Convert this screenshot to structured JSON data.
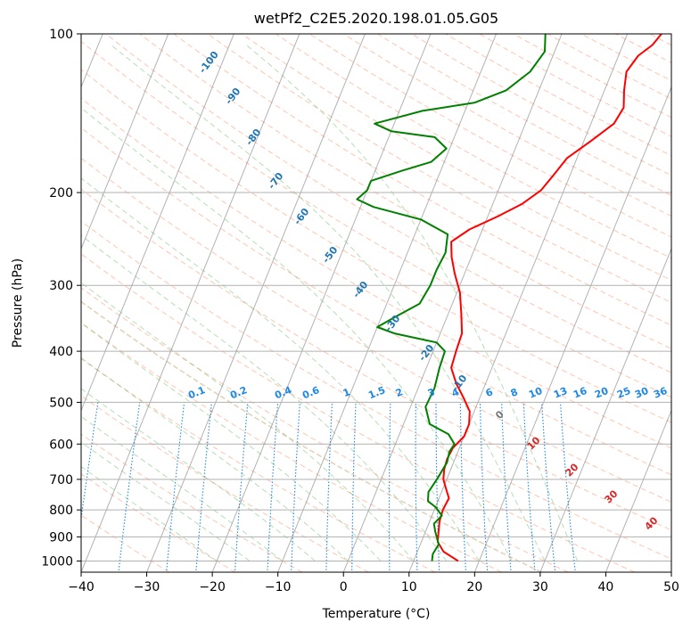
{
  "chart_data": {
    "type": "line",
    "title": "wetPf2_C2E5.2020.198.01.05.G05",
    "xlabel": "Temperature (°C)",
    "ylabel": "Pressure (hPa)",
    "xlim": [
      -40,
      50
    ],
    "ylim": [
      1050,
      100
    ],
    "y_scale": "log",
    "x_ticks": [
      -40,
      -30,
      -20,
      -10,
      0,
      10,
      20,
      30,
      40,
      50
    ],
    "y_ticks": [
      100,
      200,
      300,
      400,
      500,
      600,
      700,
      800,
      900,
      1000
    ],
    "grid": true,
    "legend": "none",
    "colors": {
      "temperature": "#ff0000",
      "dewpoint": "#008000",
      "isotherm": "#808080",
      "dry_adiabat": "#ff7f50",
      "moist_adiabat": "#2ca02c",
      "mixing_ratio": "#1e88e5",
      "isotherm_label": "#1f77b4",
      "dry_adiabat_label": "#d62728",
      "lcl_line": "#d2b48c"
    },
    "series": [
      {
        "points": [
          [
            16.8,
            1000
          ],
          [
            14.0,
            960
          ],
          [
            12.5,
            920
          ],
          [
            12.0,
            880
          ],
          [
            11.5,
            840
          ],
          [
            11.3,
            800
          ],
          [
            11.5,
            760
          ],
          [
            10.5,
            730
          ],
          [
            9.5,
            700
          ],
          [
            9.0,
            670
          ],
          [
            8.8,
            640
          ],
          [
            9.0,
            610
          ],
          [
            10.0,
            580
          ],
          [
            10.0,
            550
          ],
          [
            9.3,
            520
          ],
          [
            7.5,
            490
          ],
          [
            5.5,
            460
          ],
          [
            3.8,
            430
          ],
          [
            3.5,
            400
          ],
          [
            3.3,
            370
          ],
          [
            2.0,
            340
          ],
          [
            0.5,
            310
          ],
          [
            -1.5,
            285
          ],
          [
            -3.0,
            265
          ],
          [
            -4.0,
            248
          ],
          [
            -2.0,
            235
          ],
          [
            1.5,
            222
          ],
          [
            4.5,
            210
          ],
          [
            6.5,
            198
          ],
          [
            7.5,
            185
          ],
          [
            8.5,
            172
          ],
          [
            11.0,
            160
          ],
          [
            13.5,
            148
          ],
          [
            14.0,
            138
          ],
          [
            13.0,
            128
          ],
          [
            12.2,
            118
          ],
          [
            13.0,
            110
          ],
          [
            14.5,
            105
          ],
          [
            15.2,
            100
          ]
        ]
      },
      {
        "points": [
          [
            12.8,
            1000
          ],
          [
            12.5,
            970
          ],
          [
            12.8,
            930
          ],
          [
            11.5,
            880
          ],
          [
            10.8,
            850
          ],
          [
            11.5,
            820
          ],
          [
            10.0,
            790
          ],
          [
            8.5,
            770
          ],
          [
            8.0,
            740
          ],
          [
            8.5,
            700
          ],
          [
            9.0,
            650
          ],
          [
            8.7,
            620
          ],
          [
            9.0,
            600
          ],
          [
            7.5,
            575
          ],
          [
            4.0,
            550
          ],
          [
            2.3,
            510
          ],
          [
            2.5,
            470
          ],
          [
            2.0,
            430
          ],
          [
            1.8,
            400
          ],
          [
            0.0,
            385
          ],
          [
            -7.0,
            370
          ],
          [
            -10.0,
            360
          ],
          [
            -8.0,
            345
          ],
          [
            -5.0,
            325
          ],
          [
            -4.5,
            300
          ],
          [
            -4.5,
            280
          ],
          [
            -4.2,
            260
          ],
          [
            -5.0,
            240
          ],
          [
            -10.0,
            225
          ],
          [
            -18.0,
            213
          ],
          [
            -21.0,
            206
          ],
          [
            -20.0,
            198
          ],
          [
            -20.0,
            190
          ],
          [
            -16.0,
            182
          ],
          [
            -12.0,
            175
          ],
          [
            -10.5,
            165
          ],
          [
            -13.0,
            157
          ],
          [
            -20.0,
            153
          ],
          [
            -23.0,
            148
          ],
          [
            -16.5,
            140
          ],
          [
            -9.0,
            135
          ],
          [
            -5.0,
            128
          ],
          [
            -2.5,
            118
          ],
          [
            -1.5,
            108
          ],
          [
            -2.5,
            100
          ]
        ]
      }
    ],
    "isotherm_labels": [
      -100,
      -90,
      -80,
      -70,
      -60,
      -50,
      -40,
      -30,
      -20,
      -10
    ],
    "dry_adiabat_labels": [
      0,
      10,
      20,
      30,
      40
    ],
    "mixing_ratio_labels": [
      "0.1",
      "0.2",
      "0.4",
      "0.6",
      "1",
      "1.5",
      "2",
      "3",
      "4",
      "6",
      "8",
      "10",
      "13",
      "16",
      "20",
      "25",
      "30",
      "36"
    ]
  }
}
